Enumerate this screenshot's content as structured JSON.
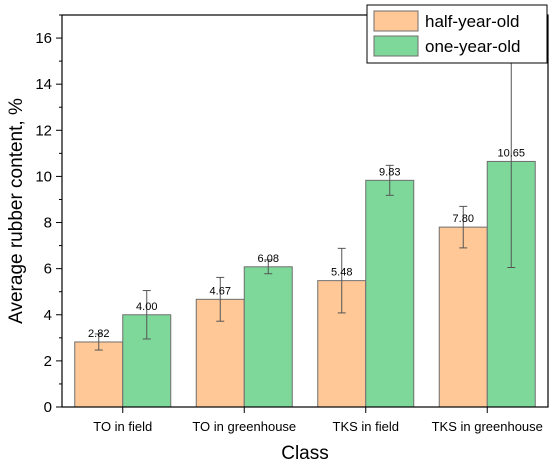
{
  "chart_data": {
    "type": "bar",
    "xlabel": "Class",
    "ylabel": "Average rubber content, %",
    "ylim": [
      0,
      17
    ],
    "yticks": [
      0,
      2,
      4,
      6,
      8,
      10,
      12,
      14,
      16
    ],
    "categories": [
      "TO in field",
      "TO in greenhouse",
      "TKS in field",
      "TKS in greenhouse"
    ],
    "series": [
      {
        "name": "half-year-old",
        "color": "#FFC896",
        "values": [
          2.82,
          4.67,
          5.48,
          7.8
        ],
        "value_labels": [
          "2.82",
          "4.67",
          "5.48",
          "7.80"
        ],
        "error": [
          0.35,
          0.95,
          1.4,
          0.9
        ]
      },
      {
        "name": "one-year-old",
        "color": "#7DD89A",
        "values": [
          4.0,
          6.08,
          9.83,
          10.65
        ],
        "value_labels": [
          "4.00",
          "6.08",
          "9.83",
          "10.65"
        ],
        "error": [
          1.05,
          0.3,
          0.65,
          4.6
        ]
      }
    ],
    "legend_position": "top-right",
    "grid": false
  }
}
